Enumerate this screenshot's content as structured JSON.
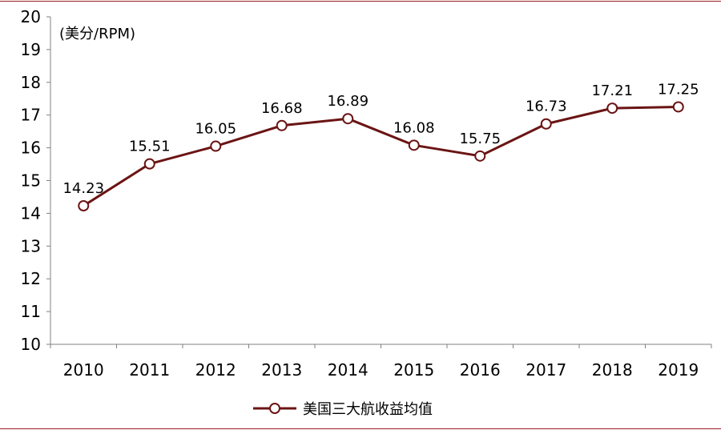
{
  "chart_data": {
    "type": "line",
    "title": "",
    "unit_label": "(美分/RPM)",
    "xlabel": "",
    "ylabel": "",
    "categories": [
      "2010",
      "2011",
      "2012",
      "2013",
      "2014",
      "2015",
      "2016",
      "2017",
      "2018",
      "2019"
    ],
    "series": [
      {
        "name": "美国三大航收益均值",
        "values": [
          14.23,
          15.51,
          16.05,
          16.68,
          16.89,
          16.08,
          15.75,
          16.73,
          17.21,
          17.25
        ],
        "data_labels": [
          "14.23",
          "15.51",
          "16.05",
          "16.68",
          "16.89",
          "16.08",
          "15.75",
          "16.73",
          "17.21",
          "17.25"
        ],
        "color": "#6b1414",
        "marker": "hollow-circle"
      }
    ],
    "ylim": [
      10,
      20
    ],
    "yticks": [
      "10",
      "11",
      "12",
      "13",
      "14",
      "15",
      "16",
      "17",
      "18",
      "19",
      "20"
    ],
    "grid": false,
    "legend_position": "bottom"
  }
}
